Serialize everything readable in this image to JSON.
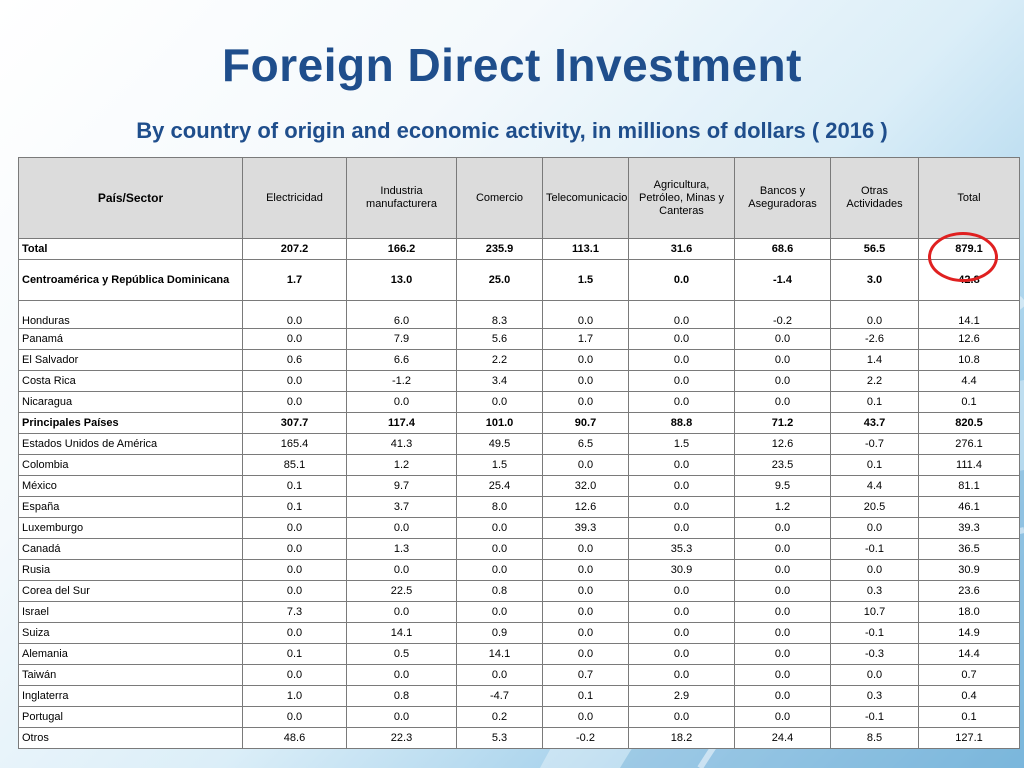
{
  "slide": {
    "title": "Foreign Direct Investment",
    "subtitle": "By country of origin and economic activity, in millions of dollars ( 2016 )"
  },
  "colors": {
    "title": "#1f4e8c",
    "header_bg": "#dcdcdc",
    "highlight_circle": "#e02020"
  },
  "table": {
    "headers": [
      "País/Sector",
      "Electricidad",
      "Industria manufacturera",
      "Comercio",
      "Telecomunicaciones",
      "Agricultura, Petróleo, Minas y Canteras",
      "Bancos y Aseguradoras",
      "Otras Actividades",
      "Total"
    ],
    "rows": [
      {
        "cells": [
          "Total",
          "207.2",
          "166.2",
          "235.9",
          "113.1",
          "31.6",
          "68.6",
          "56.5",
          "879.1"
        ]
      },
      {
        "cells": [
          "Centroamérica y República  Dominicana",
          "1.7",
          "13.0",
          "25.0",
          "1.5",
          "0.0",
          "-1.4",
          "3.0",
          "42.8"
        ]
      },
      {
        "cells": [
          "Honduras",
          "0.0",
          "6.0",
          "8.3",
          "0.0",
          "0.0",
          "-0.2",
          "0.0",
          "14.1"
        ]
      },
      {
        "cells": [
          "Panamá",
          "0.0",
          "7.9",
          "5.6",
          "1.7",
          "0.0",
          "0.0",
          "-2.6",
          "12.6"
        ]
      },
      {
        "cells": [
          "El Salvador",
          "0.6",
          "6.6",
          "2.2",
          "0.0",
          "0.0",
          "0.0",
          "1.4",
          "10.8"
        ]
      },
      {
        "cells": [
          "Costa Rica",
          "0.0",
          "-1.2",
          "3.4",
          "0.0",
          "0.0",
          "0.0",
          "2.2",
          "4.4"
        ]
      },
      {
        "cells": [
          "Nicaragua",
          "0.0",
          "0.0",
          "0.0",
          "0.0",
          "0.0",
          "0.0",
          "0.1",
          "0.1"
        ]
      },
      {
        "cells": [
          "Principales Países",
          "307.7",
          "117.4",
          "101.0",
          "90.7",
          "88.8",
          "71.2",
          "43.7",
          "820.5"
        ]
      },
      {
        "cells": [
          "Estados Unidos de América",
          "165.4",
          "41.3",
          "49.5",
          "6.5",
          "1.5",
          "12.6",
          "-0.7",
          "276.1"
        ]
      },
      {
        "cells": [
          "Colombia",
          "85.1",
          "1.2",
          "1.5",
          "0.0",
          "0.0",
          "23.5",
          "0.1",
          "111.4"
        ]
      },
      {
        "cells": [
          "México",
          "0.1",
          "9.7",
          "25.4",
          "32.0",
          "0.0",
          "9.5",
          "4.4",
          "81.1"
        ]
      },
      {
        "cells": [
          "España",
          "0.1",
          "3.7",
          "8.0",
          "12.6",
          "0.0",
          "1.2",
          "20.5",
          "46.1"
        ]
      },
      {
        "cells": [
          "Luxemburgo",
          "0.0",
          "0.0",
          "0.0",
          "39.3",
          "0.0",
          "0.0",
          "0.0",
          "39.3"
        ]
      },
      {
        "cells": [
          "Canadá",
          "0.0",
          "1.3",
          "0.0",
          "0.0",
          "35.3",
          "0.0",
          "-0.1",
          "36.5"
        ]
      },
      {
        "cells": [
          "Rusia",
          "0.0",
          "0.0",
          "0.0",
          "0.0",
          "30.9",
          "0.0",
          "0.0",
          "30.9"
        ]
      },
      {
        "cells": [
          "Corea del Sur",
          "0.0",
          "22.5",
          "0.8",
          "0.0",
          "0.0",
          "0.0",
          "0.3",
          "23.6"
        ]
      },
      {
        "cells": [
          "Israel",
          "7.3",
          "0.0",
          "0.0",
          "0.0",
          "0.0",
          "0.0",
          "10.7",
          "18.0"
        ]
      },
      {
        "cells": [
          "Suiza",
          "0.0",
          "14.1",
          "0.9",
          "0.0",
          "0.0",
          "0.0",
          "-0.1",
          "14.9"
        ]
      },
      {
        "cells": [
          "Alemania",
          "0.1",
          "0.5",
          "14.1",
          "0.0",
          "0.0",
          "0.0",
          "-0.3",
          "14.4"
        ]
      },
      {
        "cells": [
          "Taiwán",
          "0.0",
          "0.0",
          "0.0",
          "0.7",
          "0.0",
          "0.0",
          "0.0",
          "0.7"
        ]
      },
      {
        "cells": [
          "Inglaterra",
          "1.0",
          "0.8",
          "-4.7",
          "0.1",
          "2.9",
          "0.0",
          "0.3",
          "0.4"
        ]
      },
      {
        "cells": [
          "Portugal",
          "0.0",
          "0.0",
          "0.2",
          "0.0",
          "0.0",
          "0.0",
          "-0.1",
          "0.1"
        ]
      },
      {
        "cells": [
          "Otros",
          "48.6",
          "22.3",
          "5.3",
          "-0.2",
          "18.2",
          "24.4",
          "8.5",
          "127.1"
        ]
      }
    ]
  }
}
